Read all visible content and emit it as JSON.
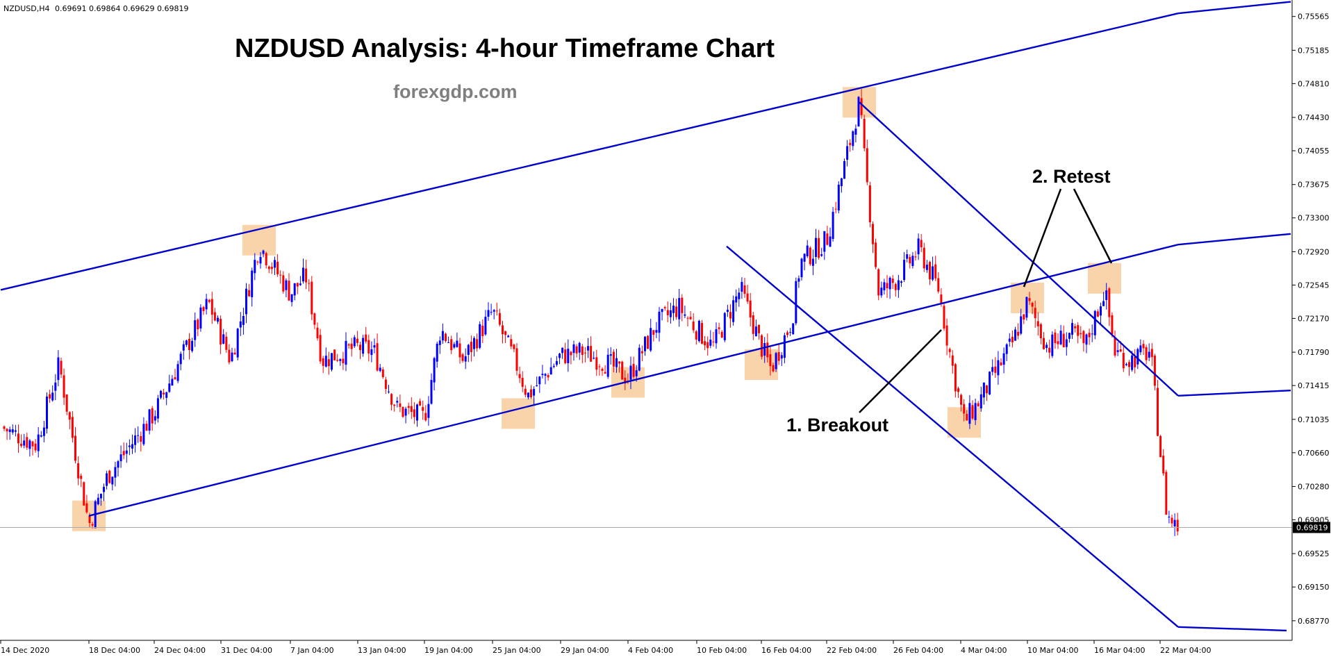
{
  "window": {
    "symbol_label": "NZDUSD,H4",
    "ohlc": "0.69691 0.69864 0.69629 0.69819"
  },
  "brand": "forexgdp.com",
  "colors": {
    "background": "#ffffff",
    "bull_candle": "#0000ff",
    "bear_candle": "#ff0000",
    "trendline": "#0000cd",
    "highlight": "#f7c68e",
    "current_price_line": "#a9a9a9",
    "price_tag_bg": "#000000",
    "axis": "#000000"
  },
  "chart_data": {
    "type": "candlestick",
    "title": "NZDUSD Analysis: 4-hour Timeframe Chart",
    "timeframe": "H4",
    "ylim": [
      0.6855,
      0.7575
    ],
    "y_ticks": [
      "0.75565",
      "0.75185",
      "0.74810",
      "0.74430",
      "0.74055",
      "0.73675",
      "0.73300",
      "0.72920",
      "0.72545",
      "0.72170",
      "0.71790",
      "0.71415",
      "0.71035",
      "0.70660",
      "0.70280",
      "0.69905",
      "0.69525",
      "0.69150",
      "0.68770"
    ],
    "x_ticks": [
      "14 Dec 2020",
      "18 Dec 04:00",
      "24 Dec 04:00",
      "31 Dec 04:00",
      "7 Jan 04:00",
      "13 Jan 04:00",
      "19 Jan 04:00",
      "25 Jan 04:00",
      "29 Jan 04:00",
      "4 Feb 04:00",
      "10 Feb 04:00",
      "16 Feb 04:00",
      "22 Feb 04:00",
      "26 Feb 04:00",
      "4 Mar 04:00",
      "10 Mar 04:00",
      "16 Mar 04:00",
      "22 Mar 04:00"
    ],
    "current_price": "0.69819",
    "close_path": [
      {
        "date": "14 Dec 2020",
        "close": 0.7095
      },
      {
        "date": "16 Dec",
        "close": 0.7075
      },
      {
        "date": "17 Dec",
        "close": 0.7165
      },
      {
        "date": "18 Dec",
        "close": 0.6985
      },
      {
        "date": "21 Dec",
        "close": 0.704
      },
      {
        "date": "24 Dec",
        "close": 0.711
      },
      {
        "date": "29 Dec",
        "close": 0.7235
      },
      {
        "date": "1 Jan",
        "close": 0.717
      },
      {
        "date": "5 Jan",
        "close": 0.73
      },
      {
        "date": "7 Jan",
        "close": 0.7245
      },
      {
        "date": "9 Jan",
        "close": 0.7265
      },
      {
        "date": "11 Jan",
        "close": 0.717
      },
      {
        "date": "13 Jan",
        "close": 0.7185
      },
      {
        "date": "15 Jan",
        "close": 0.718
      },
      {
        "date": "18 Jan",
        "close": 0.7115
      },
      {
        "date": "19 Jan",
        "close": 0.7105
      },
      {
        "date": "21 Jan",
        "close": 0.7205
      },
      {
        "date": "23 Jan",
        "close": 0.717
      },
      {
        "date": "25 Jan",
        "close": 0.7225
      },
      {
        "date": "27 Jan",
        "close": 0.716
      },
      {
        "date": "28 Jan",
        "close": 0.713
      },
      {
        "date": "29 Jan",
        "close": 0.7175
      },
      {
        "date": "1 Feb",
        "close": 0.718
      },
      {
        "date": "3 Feb",
        "close": 0.7165
      },
      {
        "date": "4 Feb",
        "close": 0.715
      },
      {
        "date": "6 Feb",
        "close": 0.721
      },
      {
        "date": "8 Feb",
        "close": 0.723
      },
      {
        "date": "10 Feb",
        "close": 0.7205
      },
      {
        "date": "12 Feb",
        "close": 0.7185
      },
      {
        "date": "13 Feb",
        "close": 0.725
      },
      {
        "date": "16 Feb",
        "close": 0.7185
      },
      {
        "date": "17 Feb",
        "close": 0.716
      },
      {
        "date": "19 Feb",
        "close": 0.7215
      },
      {
        "date": "20 Feb",
        "close": 0.728
      },
      {
        "date": "22 Feb",
        "close": 0.7305
      },
      {
        "date": "23 Feb",
        "close": 0.738
      },
      {
        "date": "24 Feb",
        "close": 0.746
      },
      {
        "date": "25 Feb",
        "close": 0.739
      },
      {
        "date": "26 Feb",
        "close": 0.7245
      },
      {
        "date": "1 Mar",
        "close": 0.726
      },
      {
        "date": "2 Mar",
        "close": 0.7295
      },
      {
        "date": "3 Mar",
        "close": 0.725
      },
      {
        "date": "4 Mar",
        "close": 0.717
      },
      {
        "date": "5 Mar",
        "close": 0.71
      },
      {
        "date": "8 Mar",
        "close": 0.7125
      },
      {
        "date": "9 Mar",
        "close": 0.719
      },
      {
        "date": "10 Mar",
        "close": 0.7235
      },
      {
        "date": "11 Mar",
        "close": 0.7185
      },
      {
        "date": "12 Mar",
        "close": 0.72
      },
      {
        "date": "15 Mar",
        "close": 0.7185
      },
      {
        "date": "16 Mar",
        "close": 0.725
      },
      {
        "date": "17 Mar",
        "close": 0.718
      },
      {
        "date": "18 Mar",
        "close": 0.717
      },
      {
        "date": "19 Mar",
        "close": 0.718
      },
      {
        "date": "22 Mar",
        "close": 0.7085
      },
      {
        "date": "23 Mar",
        "close": 0.6995
      },
      {
        "date": "24 Mar",
        "close": 0.6982
      }
    ],
    "trendlines": [
      {
        "name": "Rising channel upper",
        "points": [
          {
            "date": "14 Dec 2020",
            "price": 0.7249
          },
          {
            "date": "24 Feb",
            "price": 0.746
          },
          {
            "date": "24 Mar",
            "price": 0.756
          }
        ]
      },
      {
        "name": "Rising channel lower",
        "points": [
          {
            "date": "18 Dec",
            "price": 0.6995
          },
          {
            "date": "16 Feb",
            "price": 0.7165
          },
          {
            "date": "24 Mar",
            "price": 0.73
          }
        ]
      },
      {
        "name": "Falling channel upper",
        "points": [
          {
            "date": "24 Feb",
            "price": 0.746
          },
          {
            "date": "16 Mar",
            "price": 0.7262
          },
          {
            "date": "24 Mar",
            "price": 0.713
          }
        ]
      },
      {
        "name": "Falling channel lower",
        "points": [
          {
            "date": "9 Feb",
            "price": 0.7298
          },
          {
            "date": "4 Mar",
            "price": 0.7135
          },
          {
            "date": "24 Mar",
            "price": 0.687
          }
        ]
      }
    ],
    "highlighted_swings": [
      {
        "date": "18 Dec",
        "price": 0.6995
      },
      {
        "date": "5 Jan",
        "price": 0.7305
      },
      {
        "date": "27 Jan",
        "price": 0.711
      },
      {
        "date": "4 Feb",
        "price": 0.7145
      },
      {
        "date": "16 Feb",
        "price": 0.7165
      },
      {
        "date": "24 Feb",
        "price": 0.746
      },
      {
        "date": "5 Mar",
        "price": 0.71
      },
      {
        "date": "10 Mar",
        "price": 0.724
      },
      {
        "date": "16 Mar",
        "price": 0.7262
      }
    ],
    "annotations": [
      {
        "text": "1. Breakout"
      },
      {
        "text": "2. Retest"
      }
    ]
  }
}
